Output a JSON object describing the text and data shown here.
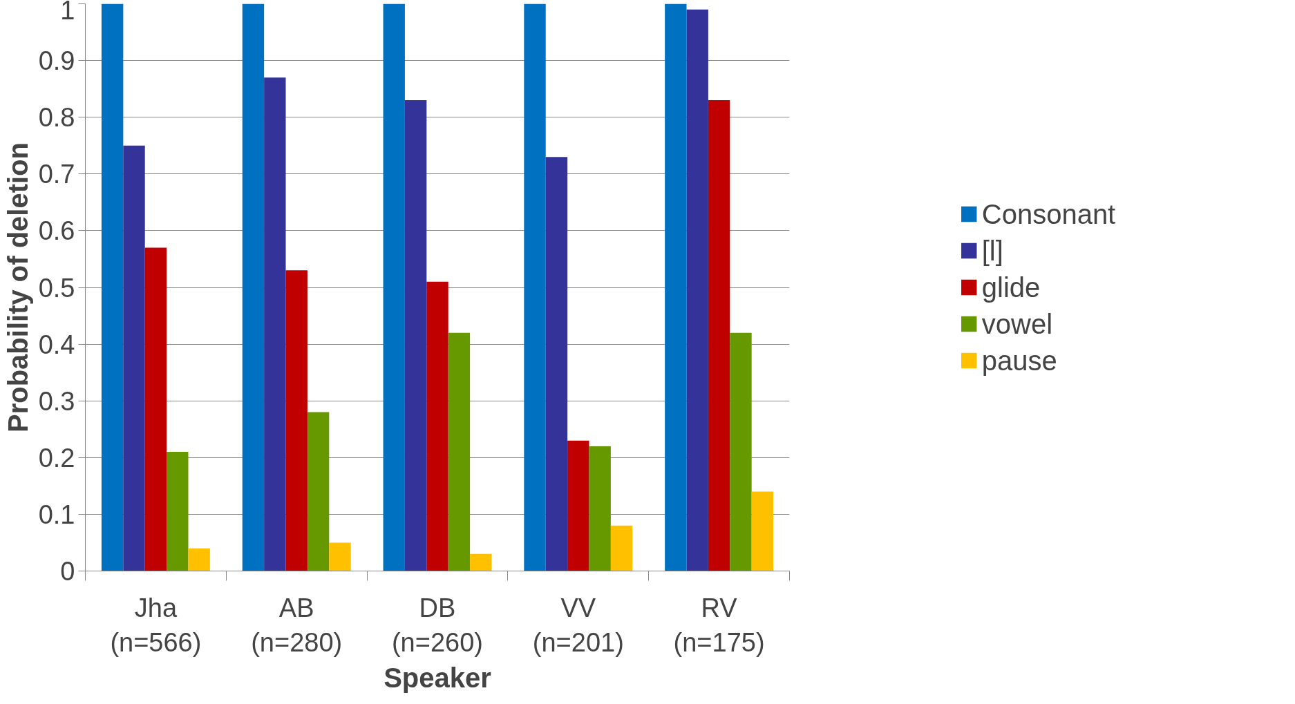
{
  "chart_data": {
    "type": "bar",
    "xlabel": "Speaker",
    "ylabel": "Probability of deletion",
    "categories": [
      "Jha\n(n=566)",
      "AB\n(n=280)",
      "DB\n(n=260)",
      "VV\n(n=201)",
      "RV\n(n=175)"
    ],
    "series": [
      {
        "name": "Consonant",
        "color": "#0070c0",
        "values": [
          1,
          1,
          1,
          1,
          1
        ]
      },
      {
        "name": "[l]",
        "color": "#333399",
        "values": [
          0.75,
          0.87,
          0.83,
          0.73,
          0.99
        ]
      },
      {
        "name": "glide",
        "color": "#c00000",
        "values": [
          0.57,
          0.53,
          0.51,
          0.23,
          0.83
        ]
      },
      {
        "name": "vowel",
        "color": "#669900",
        "values": [
          0.21,
          0.28,
          0.42,
          0.22,
          0.42
        ]
      },
      {
        "name": "pause",
        "color": "#ffc000",
        "values": [
          0.04,
          0.05,
          0.03,
          0.08,
          0.14
        ]
      }
    ],
    "ylim": [
      0,
      1
    ],
    "yticks": [
      0,
      0.1,
      0.2,
      0.3,
      0.4,
      0.5,
      0.6,
      0.7,
      0.8,
      0.9,
      1
    ],
    "grid": "y",
    "legend": "right"
  }
}
